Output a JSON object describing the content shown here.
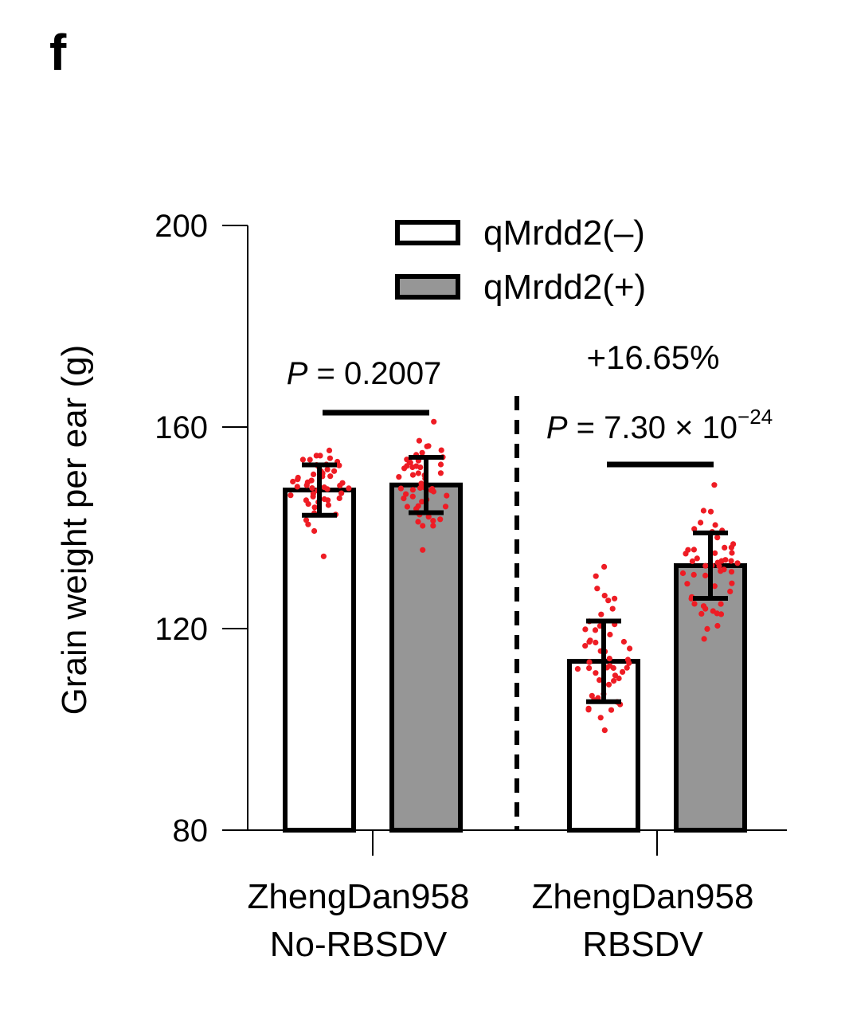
{
  "chart_data": {
    "type": "bar",
    "panel_label": "f",
    "ylabel": "Grain weight per ear (g)",
    "ylim": [
      80,
      200
    ],
    "yticks": [
      80,
      120,
      160,
      200
    ],
    "groups": [
      {
        "line1": "ZhengDan958",
        "line2": "No-RBSDV"
      },
      {
        "line1": "ZhengDan958",
        "line2": "RBSDV"
      }
    ],
    "series": [
      {
        "name": "qMrdd2(–)",
        "fill": "#ffffff",
        "values": [
          147.5,
          113.5
        ],
        "sd": [
          5.0,
          8.0
        ]
      },
      {
        "name": "qMrdd2(+)",
        "fill": "#969696",
        "values": [
          148.5,
          132.5
        ],
        "sd": [
          5.5,
          6.5
        ]
      }
    ],
    "annotations": [
      {
        "p_prefix": "P",
        "p_text": " = 0.2007",
        "group": 0
      },
      {
        "p_prefix": "P",
        "p_text": " = 7.30 × 10",
        "p_exp": "−24",
        "change": "+16.65%",
        "group": 1
      }
    ],
    "point_color": "#ee1c24",
    "points_per_bar": 50,
    "legend_position": "top-center",
    "grid": false
  }
}
